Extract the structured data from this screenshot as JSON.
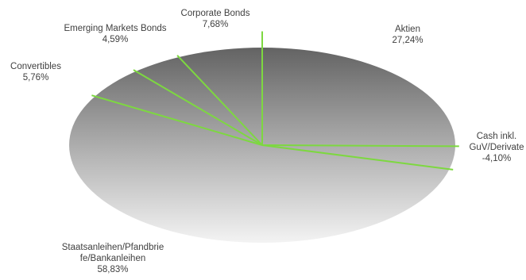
{
  "chart_data": {
    "type": "pie",
    "slices": [
      {
        "label_lines": [
          "Aktien"
        ],
        "value_text": "27,24%",
        "value": 27.24
      },
      {
        "label_lines": [
          "Cash inkl.",
          "GuV/Derivate"
        ],
        "value_text": "-4,10%",
        "value": -4.1
      },
      {
        "label_lines": [
          "Staatsanleihen/Pfandbrie",
          "fe/Bankanleihen"
        ],
        "value_text": "58,83%",
        "value": 58.83
      },
      {
        "label_lines": [
          "Convertibles"
        ],
        "value_text": "5,76%",
        "value": 5.76
      },
      {
        "label_lines": [
          "Emerging Markets Bonds"
        ],
        "value_text": "4,59%",
        "value": 4.59
      },
      {
        "label_lines": [
          "Corporate Bonds"
        ],
        "value_text": "7,68%",
        "value": 7.68
      }
    ],
    "colors": {
      "separator": "#7dd840",
      "fill_light": "#f2f2f2",
      "fill_dark": "#666666"
    }
  }
}
